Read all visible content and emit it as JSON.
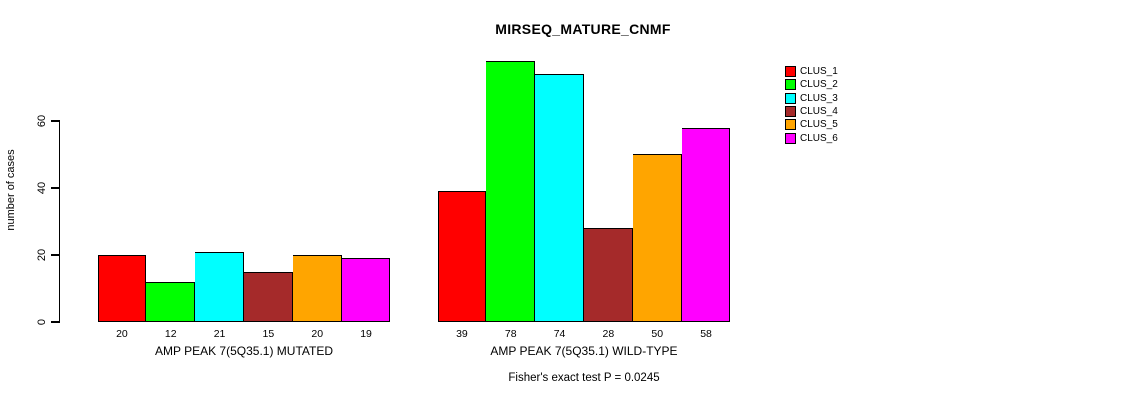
{
  "chart_data": {
    "type": "bar",
    "title": "MIRSEQ_MATURE_CNMF",
    "ylabel": "number of cases",
    "xlabel": "",
    "footer": "Fisher's exact test P = 0.0245",
    "yticks": [
      0,
      20,
      40,
      60
    ],
    "ylim": [
      0,
      80
    ],
    "grid": false,
    "legend_position": "right",
    "background_color": "#ffffff",
    "categories": [
      "AMP PEAK  7(5Q35.1) MUTATED",
      "AMP PEAK  7(5Q35.1) WILD-TYPE"
    ],
    "series": [
      {
        "name": "CLUS_1",
        "color": "#FF0000",
        "values": [
          20,
          39
        ]
      },
      {
        "name": "CLUS_2",
        "color": "#00FF00",
        "values": [
          12,
          78
        ]
      },
      {
        "name": "CLUS_3",
        "color": "#00FFFF",
        "values": [
          21,
          74
        ]
      },
      {
        "name": "CLUS_4",
        "color": "#A52A2A",
        "values": [
          15,
          28
        ]
      },
      {
        "name": "CLUS_5",
        "color": "#FFA500",
        "values": [
          20,
          50
        ]
      },
      {
        "name": "CLUS_6",
        "color": "#FF00FF",
        "values": [
          19,
          58
        ]
      }
    ]
  }
}
